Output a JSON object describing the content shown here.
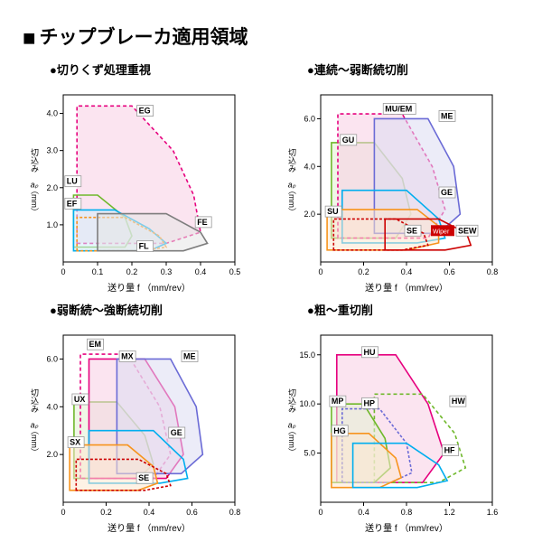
{
  "main_title": "チップブレーカ適用領域",
  "xlabel": "送り量 f （mm/rev）",
  "ylabel_top": "切込み",
  "ylabel_mid": "aₚ",
  "ylabel_bot": "（mm）",
  "axiscolor": "#000",
  "gridcolor": "#d0d0d0",
  "charts": [
    {
      "title": "●切りくず処理重視",
      "xmax": 0.5,
      "xticks": [
        0,
        0.1,
        0.2,
        0.3,
        0.4,
        0.5
      ],
      "ymax": 4.5,
      "yticks": [
        1.0,
        2.0,
        3.0,
        4.0
      ],
      "series": [
        {
          "id": "EG",
          "color": "#e6007e",
          "fill": "#f8cde4",
          "dash": "4 3",
          "path": [
            [
              0.04,
              0.5
            ],
            [
              0.04,
              4.2
            ],
            [
              0.2,
              4.2
            ],
            [
              0.32,
              3.0
            ],
            [
              0.38,
              1.8
            ],
            [
              0.4,
              0.8
            ],
            [
              0.3,
              0.5
            ]
          ],
          "label": [
            0.22,
            4.0
          ]
        },
        {
          "id": "LU",
          "color": "#6fb82b",
          "fill": "none",
          "dash": "",
          "path": [
            [
              0.03,
              0.4
            ],
            [
              0.03,
              1.8
            ],
            [
              0.1,
              1.8
            ],
            [
              0.18,
              1.2
            ],
            [
              0.2,
              0.7
            ],
            [
              0.18,
              0.4
            ]
          ],
          "label": [
            0.01,
            2.1
          ]
        },
        {
          "id": "EF",
          "color": "#00aeef",
          "fill": "#d4eefb",
          "dash": "",
          "path": [
            [
              0.03,
              0.3
            ],
            [
              0.03,
              1.4
            ],
            [
              0.15,
              1.4
            ],
            [
              0.25,
              0.9
            ],
            [
              0.3,
              0.5
            ],
            [
              0.25,
              0.3
            ]
          ],
          "label": [
            0.01,
            1.5
          ]
        },
        {
          "id": "FL",
          "color": "#f7941e",
          "fill": "none",
          "dash": "3 2",
          "path": [
            [
              0.04,
              0.3
            ],
            [
              0.04,
              1.2
            ],
            [
              0.18,
              1.2
            ],
            [
              0.28,
              0.7
            ],
            [
              0.3,
              0.4
            ],
            [
              0.22,
              0.3
            ]
          ],
          "label": [
            0.22,
            0.35
          ]
        },
        {
          "id": "FE",
          "color": "#7d7d7d",
          "fill": "#e5e5e5",
          "dash": "",
          "path": [
            [
              0.1,
              0.3
            ],
            [
              0.1,
              1.3
            ],
            [
              0.3,
              1.3
            ],
            [
              0.4,
              0.8
            ],
            [
              0.42,
              0.5
            ],
            [
              0.35,
              0.3
            ]
          ],
          "label": [
            0.39,
            1.0
          ]
        }
      ]
    },
    {
      "title": "●連続～弱断続切削",
      "xmax": 0.8,
      "xticks": [
        0,
        0.2,
        0.4,
        0.6,
        0.8
      ],
      "ymax": 7,
      "yticks": [
        2.0,
        4.0,
        6.0
      ],
      "series": [
        {
          "id": "GU",
          "color": "#6fb82b",
          "fill": "#e3f0d3",
          "dash": "",
          "path": [
            [
              0.05,
              1.0
            ],
            [
              0.05,
              5.0
            ],
            [
              0.25,
              5.0
            ],
            [
              0.38,
              3.5
            ],
            [
              0.42,
              2.0
            ],
            [
              0.35,
              1.0
            ]
          ],
          "label": [
            0.1,
            5.0
          ]
        },
        {
          "id": "MU/EM",
          "color": "#e6007e",
          "fill": "#f8cde4",
          "dash": "4 3",
          "path": [
            [
              0.08,
              1.0
            ],
            [
              0.08,
              6.2
            ],
            [
              0.38,
              6.2
            ],
            [
              0.52,
              4.0
            ],
            [
              0.58,
              2.2
            ],
            [
              0.5,
              1.0
            ]
          ],
          "label": [
            0.3,
            6.3
          ]
        },
        {
          "id": "ME",
          "color": "#6b6bd6",
          "fill": "#dcdcf2",
          "dash": "",
          "path": [
            [
              0.25,
              1.2
            ],
            [
              0.25,
              6.0
            ],
            [
              0.5,
              6.0
            ],
            [
              0.62,
              4.0
            ],
            [
              0.65,
              2.0
            ],
            [
              0.55,
              1.2
            ]
          ],
          "label": [
            0.56,
            6.0
          ]
        },
        {
          "id": "GE",
          "color": "#00aeef",
          "fill": "none",
          "dash": "",
          "path": [
            [
              0.1,
              0.8
            ],
            [
              0.1,
              3.0
            ],
            [
              0.4,
              3.0
            ],
            [
              0.55,
              1.8
            ],
            [
              0.58,
              1.0
            ],
            [
              0.45,
              0.8
            ]
          ],
          "label": [
            0.56,
            2.8
          ]
        },
        {
          "id": "SU",
          "color": "#f7941e",
          "fill": "#fde8d0",
          "dash": "",
          "path": [
            [
              0.03,
              0.5
            ],
            [
              0.03,
              2.2
            ],
            [
              0.45,
              2.2
            ],
            [
              0.55,
              1.5
            ],
            [
              0.55,
              0.8
            ],
            [
              0.4,
              0.5
            ]
          ],
          "label": [
            0.03,
            2.0
          ]
        },
        {
          "id": "SE",
          "color": "#c00",
          "fill": "none",
          "dash": "3 2",
          "path": [
            [
              0.06,
              0.5
            ],
            [
              0.06,
              1.8
            ],
            [
              0.35,
              1.8
            ],
            [
              0.48,
              1.2
            ],
            [
              0.5,
              0.7
            ],
            [
              0.38,
              0.5
            ]
          ],
          "label": [
            0.4,
            1.2
          ]
        },
        {
          "id": "SEW",
          "color": "#c00",
          "fill": "none",
          "dash": "",
          "path": [
            [
              0.3,
              0.5
            ],
            [
              0.3,
              1.8
            ],
            [
              0.55,
              1.8
            ],
            [
              0.68,
              1.2
            ],
            [
              0.7,
              0.7
            ],
            [
              0.58,
              0.5
            ]
          ],
          "label": [
            0.64,
            1.2
          ],
          "extra": "Wiper"
        }
      ]
    },
    {
      "title": "●弱断続～強断続切削",
      "xmax": 0.8,
      "xticks": [
        0,
        0.2,
        0.4,
        0.6,
        0.8
      ],
      "ymax": 7,
      "yticks": [
        2.0,
        4.0,
        6.0
      ],
      "series": [
        {
          "id": "UX",
          "color": "#6fb82b",
          "fill": "#e3f0d3",
          "dash": "",
          "path": [
            [
              0.05,
              1.0
            ],
            [
              0.05,
              4.2
            ],
            [
              0.25,
              4.2
            ],
            [
              0.38,
              2.8
            ],
            [
              0.42,
              1.6
            ],
            [
              0.35,
              1.0
            ]
          ],
          "label": [
            0.05,
            4.2
          ]
        },
        {
          "id": "EM",
          "color": "#e6007e",
          "fill": "none",
          "dash": "4 3",
          "path": [
            [
              0.08,
              1.0
            ],
            [
              0.08,
              6.2
            ],
            [
              0.3,
              6.2
            ],
            [
              0.45,
              4.0
            ],
            [
              0.5,
              2.0
            ],
            [
              0.42,
              1.0
            ]
          ],
          "label": [
            0.12,
            6.5
          ]
        },
        {
          "id": "MX",
          "color": "#e6007e",
          "fill": "#f8cde4",
          "dash": "",
          "path": [
            [
              0.12,
              1.0
            ],
            [
              0.12,
              6.0
            ],
            [
              0.38,
              6.0
            ],
            [
              0.52,
              4.0
            ],
            [
              0.56,
              2.0
            ],
            [
              0.48,
              1.0
            ]
          ],
          "label": [
            0.27,
            6.0
          ]
        },
        {
          "id": "ME",
          "color": "#6b6bd6",
          "fill": "#dcdcf2",
          "dash": "",
          "path": [
            [
              0.25,
              1.2
            ],
            [
              0.25,
              6.0
            ],
            [
              0.5,
              6.0
            ],
            [
              0.62,
              4.0
            ],
            [
              0.65,
              2.0
            ],
            [
              0.55,
              1.2
            ]
          ],
          "label": [
            0.56,
            6.0
          ]
        },
        {
          "id": "GE",
          "color": "#00aeef",
          "fill": "none",
          "dash": "",
          "path": [
            [
              0.12,
              0.8
            ],
            [
              0.12,
              3.0
            ],
            [
              0.42,
              3.0
            ],
            [
              0.56,
              1.8
            ],
            [
              0.58,
              1.0
            ],
            [
              0.45,
              0.8
            ]
          ],
          "label": [
            0.5,
            2.8
          ]
        },
        {
          "id": "SX",
          "color": "#f7941e",
          "fill": "#fde8d0",
          "dash": "",
          "path": [
            [
              0.03,
              0.5
            ],
            [
              0.03,
              2.4
            ],
            [
              0.3,
              2.4
            ],
            [
              0.42,
              1.5
            ],
            [
              0.44,
              0.8
            ],
            [
              0.35,
              0.5
            ]
          ],
          "label": [
            0.03,
            2.4
          ]
        },
        {
          "id": "SE",
          "color": "#c00",
          "fill": "none",
          "dash": "3 2",
          "path": [
            [
              0.06,
              0.5
            ],
            [
              0.06,
              1.8
            ],
            [
              0.35,
              1.8
            ],
            [
              0.48,
              1.2
            ],
            [
              0.5,
              0.7
            ],
            [
              0.38,
              0.5
            ]
          ],
          "label": [
            0.35,
            0.9
          ]
        }
      ]
    },
    {
      "title": "●粗～重切削",
      "xmax": 1.6,
      "xticks": [
        0,
        0.4,
        0.8,
        1.2,
        1.6
      ],
      "ymax": 17,
      "yticks": [
        5.0,
        10.0,
        15.0
      ],
      "series": [
        {
          "id": "HU",
          "color": "#e6007e",
          "fill": "#f8cde4",
          "dash": "",
          "path": [
            [
              0.15,
              2.0
            ],
            [
              0.15,
              15.0
            ],
            [
              0.7,
              15.0
            ],
            [
              1.0,
              10.0
            ],
            [
              1.15,
              5.0
            ],
            [
              0.95,
              2.0
            ]
          ],
          "label": [
            0.4,
            15.0
          ]
        },
        {
          "id": "HW",
          "color": "#6fb82b",
          "fill": "none",
          "dash": "4 3",
          "path": [
            [
              0.5,
              2.0
            ],
            [
              0.5,
              11.0
            ],
            [
              0.95,
              11.0
            ],
            [
              1.25,
              7.0
            ],
            [
              1.35,
              3.5
            ],
            [
              1.1,
              2.0
            ]
          ],
          "label": [
            1.22,
            10.0
          ]
        },
        {
          "id": "MP",
          "color": "#6fb82b",
          "fill": "#e3f0d3",
          "dash": "",
          "path": [
            [
              0.1,
              2.0
            ],
            [
              0.1,
              10.0
            ],
            [
              0.4,
              10.0
            ],
            [
              0.6,
              6.5
            ],
            [
              0.65,
              3.5
            ],
            [
              0.5,
              2.0
            ]
          ],
          "label": [
            0.1,
            10.0
          ]
        },
        {
          "id": "HP",
          "color": "#6b6bd6",
          "fill": "none",
          "dash": "3 2",
          "path": [
            [
              0.2,
              2.0
            ],
            [
              0.2,
              9.5
            ],
            [
              0.55,
              9.5
            ],
            [
              0.8,
              6.0
            ],
            [
              0.85,
              3.0
            ],
            [
              0.65,
              2.0
            ]
          ],
          "label": [
            0.4,
            9.8
          ]
        },
        {
          "id": "HG",
          "color": "#f7941e",
          "fill": "#fde8d0",
          "dash": "",
          "path": [
            [
              0.1,
              1.5
            ],
            [
              0.1,
              7.0
            ],
            [
              0.45,
              7.0
            ],
            [
              0.7,
              4.5
            ],
            [
              0.75,
              2.5
            ],
            [
              0.55,
              1.5
            ]
          ],
          "label": [
            0.12,
            7.0
          ]
        },
        {
          "id": "HF",
          "color": "#00aeef",
          "fill": "none",
          "dash": "",
          "path": [
            [
              0.3,
              1.5
            ],
            [
              0.3,
              6.0
            ],
            [
              0.8,
              6.0
            ],
            [
              1.1,
              3.8
            ],
            [
              1.18,
              2.2
            ],
            [
              0.9,
              1.5
            ]
          ],
          "label": [
            1.15,
            5.0
          ]
        }
      ]
    }
  ]
}
